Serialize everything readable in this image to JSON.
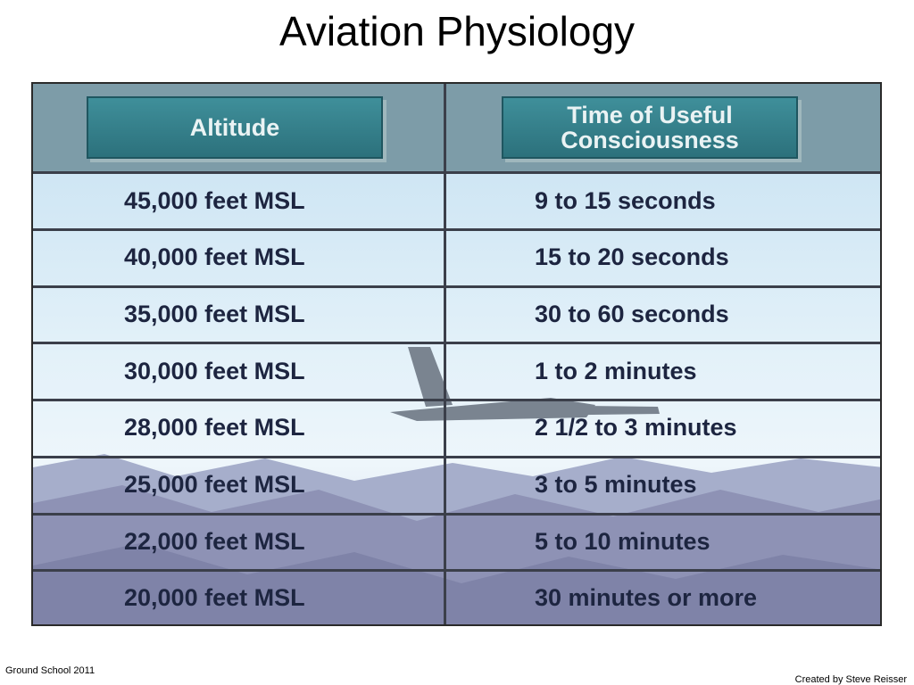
{
  "header": {
    "title": "Aviation Physiology"
  },
  "table": {
    "columns": [
      "Altitude",
      "Time of Useful Consciousness"
    ],
    "rows": [
      [
        "45,000 feet MSL",
        "9 to 15 seconds"
      ],
      [
        "40,000 feet MSL",
        "15 to 20 seconds"
      ],
      [
        "35,000 feet MSL",
        "30 to 60 seconds"
      ],
      [
        "30,000 feet MSL",
        "1 to 2 minutes"
      ],
      [
        "28,000 feet MSL",
        "2 1/2 to 3 minutes"
      ],
      [
        "25,000 feet MSL",
        "3 to 5 minutes"
      ],
      [
        "22,000 feet MSL",
        "5 to 10 minutes"
      ],
      [
        "20,000 feet MSL",
        "30 minutes or more"
      ]
    ]
  },
  "footer": {
    "left": "Ground School 2011",
    "right": "Created by Steve Reisser"
  }
}
